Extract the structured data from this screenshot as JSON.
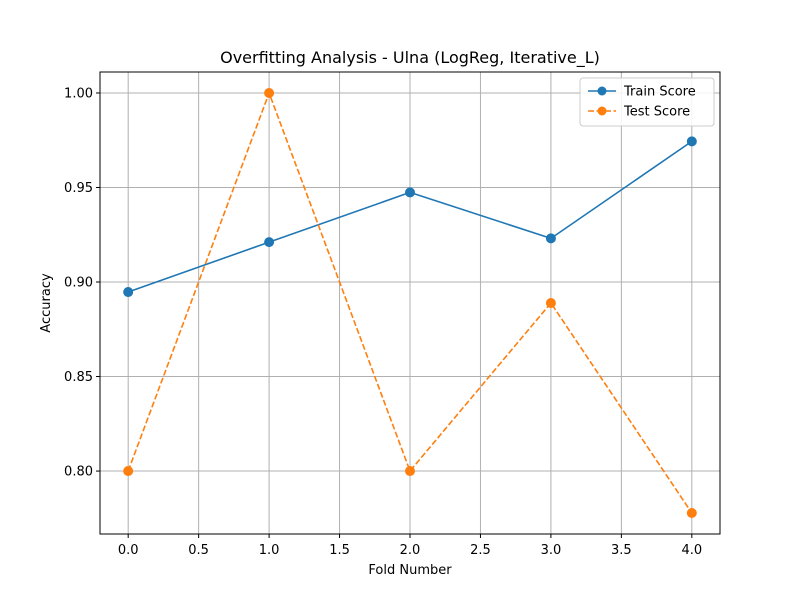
{
  "chart_data": {
    "type": "line",
    "title": "Overfitting Analysis - Ulna (LogReg, Iterative_L)",
    "xlabel": "Fold Number",
    "ylabel": "Accuracy",
    "xlim": [
      -0.2,
      4.2
    ],
    "ylim": [
      0.7667,
      1.0111
    ],
    "xticks": [
      0.0,
      0.5,
      1.0,
      1.5,
      2.0,
      2.5,
      3.0,
      3.5,
      4.0
    ],
    "xtick_labels": [
      "0.0",
      "0.5",
      "1.0",
      "1.5",
      "2.0",
      "2.5",
      "3.0",
      "3.5",
      "4.0"
    ],
    "yticks": [
      0.8,
      0.85,
      0.9,
      0.95,
      1.0
    ],
    "ytick_labels": [
      "0.80",
      "0.85",
      "0.90",
      "0.95",
      "1.00"
    ],
    "grid": true,
    "legend_position": "top-right",
    "x": [
      0,
      1,
      2,
      3,
      4
    ],
    "series": [
      {
        "name": "Train Score",
        "values": [
          0.8947,
          0.9211,
          0.9474,
          0.9231,
          0.9744
        ],
        "color": "#1f77b4",
        "linestyle": "solid",
        "marker": "circle"
      },
      {
        "name": "Test Score",
        "values": [
          0.8,
          1.0,
          0.8,
          0.8889,
          0.7778
        ],
        "color": "#ff7f0e",
        "linestyle": "dashed",
        "marker": "circle"
      }
    ]
  }
}
